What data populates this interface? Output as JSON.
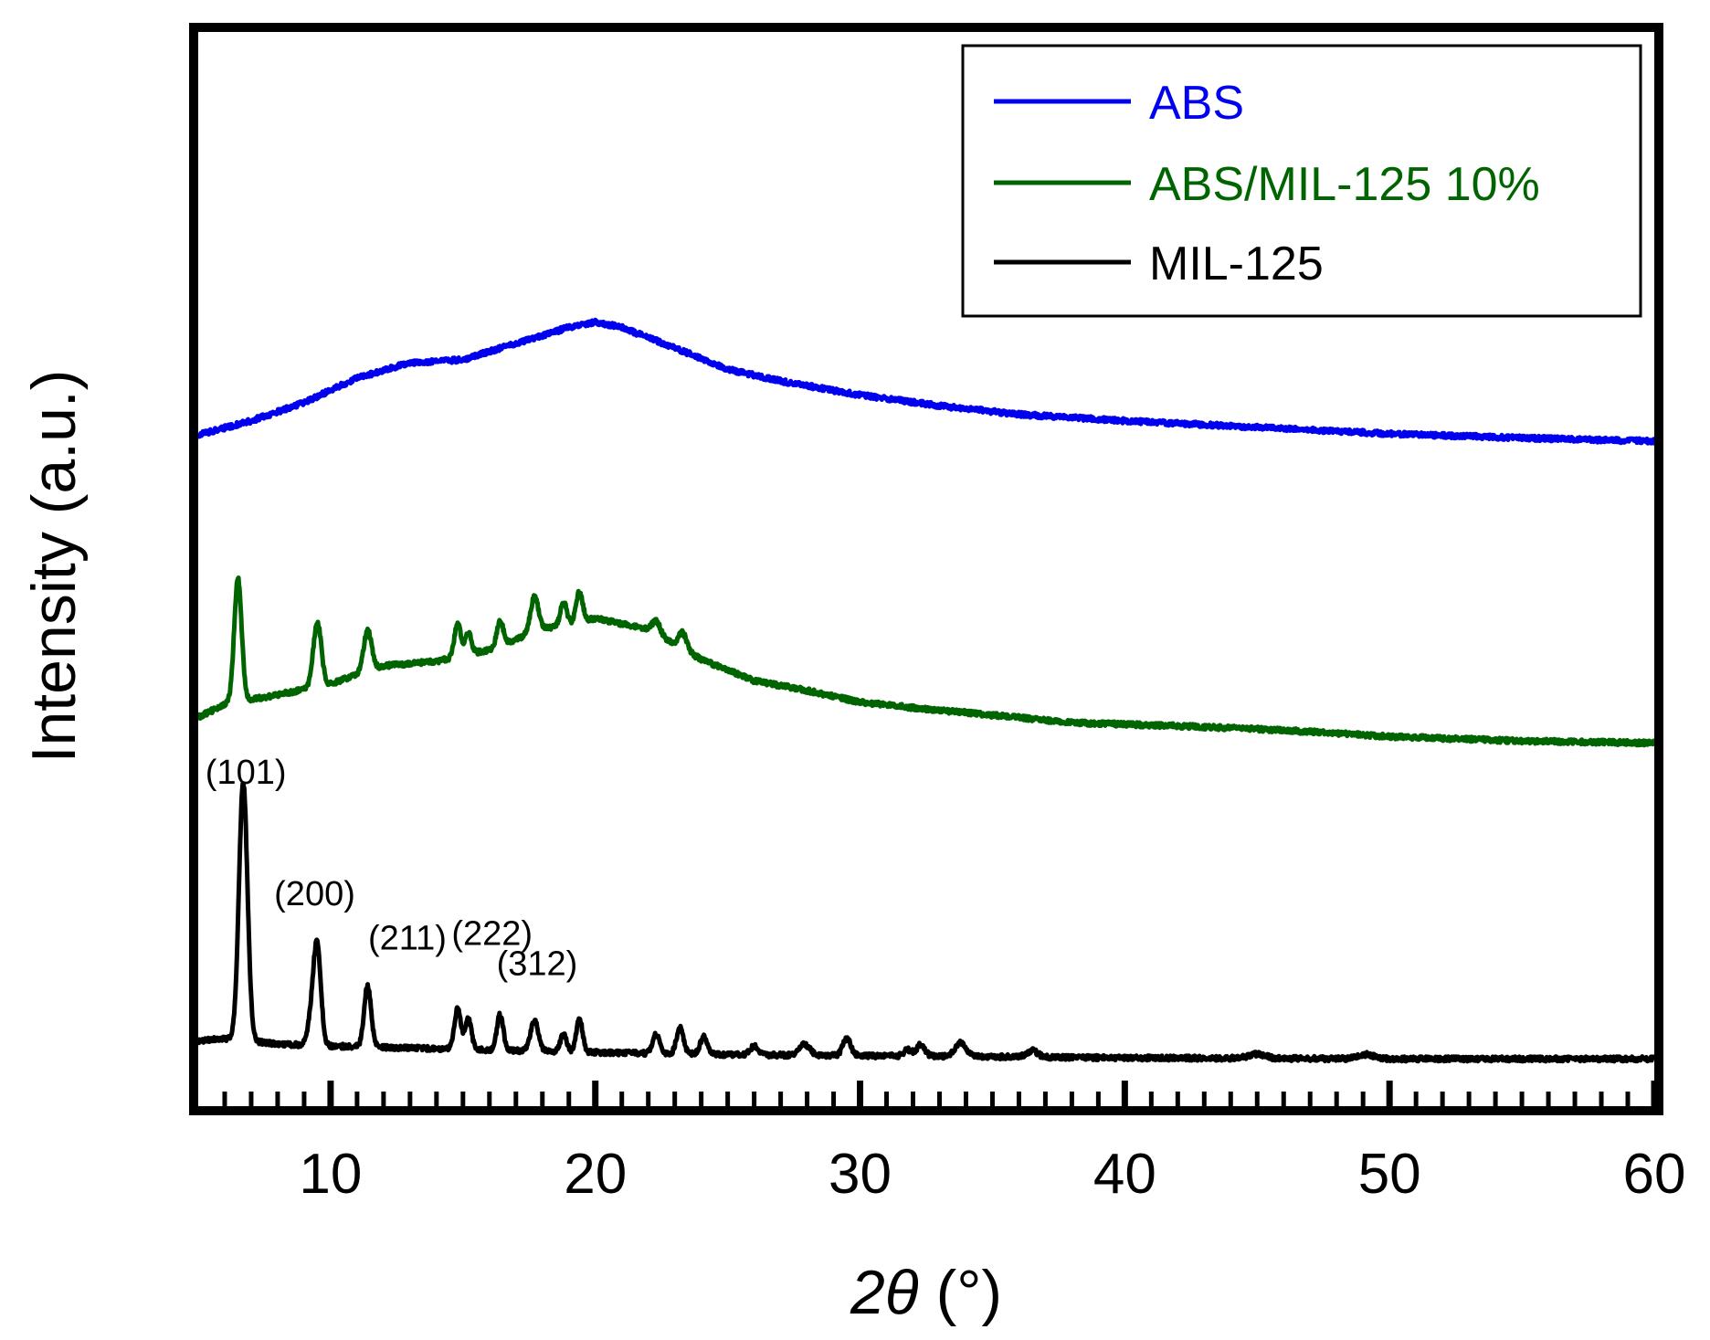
{
  "chart_data": {
    "type": "line",
    "title": "",
    "xlabel_symbol": "2θ",
    "xlabel_unit": "(°)",
    "ylabel": "Intensity (a.u.)",
    "xlim": [
      5,
      60
    ],
    "ylim": [
      0,
      100
    ],
    "xticks": [
      10,
      20,
      30,
      40,
      50,
      60
    ],
    "xticks_minor": [
      6,
      7,
      8,
      9,
      11,
      12,
      13,
      14,
      15,
      16,
      17,
      18,
      19,
      21,
      22,
      23,
      24,
      25,
      26,
      27,
      28,
      29,
      31,
      32,
      33,
      34,
      35,
      36,
      37,
      38,
      39,
      41,
      42,
      43,
      44,
      45,
      46,
      47,
      48,
      49,
      51,
      52,
      53,
      54,
      55,
      56,
      57,
      58,
      59
    ],
    "yticks_visible": false,
    "legend_position": "top-right",
    "series": [
      {
        "name": "ABS",
        "color": "#0000ee",
        "baseline": [
          [
            5,
            62.5
          ],
          [
            7,
            63.8
          ],
          [
            9,
            65.5
          ],
          [
            11,
            67.8
          ],
          [
            13,
            69.2
          ],
          [
            15,
            69.5
          ],
          [
            17,
            71.0
          ],
          [
            19,
            72.5
          ],
          [
            20,
            73.0
          ],
          [
            21,
            72.5
          ],
          [
            23,
            70.6
          ],
          [
            25,
            68.6
          ],
          [
            27,
            67.5
          ],
          [
            30,
            66.2
          ],
          [
            33,
            65.2
          ],
          [
            36,
            64.4
          ],
          [
            40,
            63.8
          ],
          [
            45,
            63.2
          ],
          [
            50,
            62.6
          ],
          [
            55,
            62.2
          ],
          [
            60,
            61.9
          ]
        ],
        "peaks": []
      },
      {
        "name": "ABS/MIL-125 10%",
        "color": "#006400",
        "baseline": [
          [
            5,
            36.2
          ],
          [
            6,
            37.4
          ],
          [
            8,
            38.3
          ],
          [
            10,
            39.3
          ],
          [
            12,
            41.0
          ],
          [
            14,
            41.4
          ],
          [
            16,
            42.5
          ],
          [
            18,
            44.4
          ],
          [
            20,
            45.4
          ],
          [
            22,
            44.4
          ],
          [
            24,
            41.6
          ],
          [
            26,
            39.6
          ],
          [
            28,
            38.7
          ],
          [
            30,
            37.6
          ],
          [
            32,
            37.1
          ],
          [
            35,
            36.4
          ],
          [
            38,
            35.7
          ],
          [
            42,
            35.4
          ],
          [
            46,
            35.0
          ],
          [
            50,
            34.4
          ],
          [
            55,
            34.0
          ],
          [
            60,
            33.8
          ]
        ],
        "peaks": [
          [
            6.5,
            11.5,
            0.14
          ],
          [
            9.5,
            6.0,
            0.15
          ],
          [
            11.4,
            3.8,
            0.15
          ],
          [
            14.8,
            3.2,
            0.12
          ],
          [
            15.2,
            2.0,
            0.12
          ],
          [
            16.4,
            2.3,
            0.12
          ],
          [
            17.7,
            3.3,
            0.15
          ],
          [
            18.8,
            2.1,
            0.12
          ],
          [
            19.4,
            2.8,
            0.12
          ],
          [
            22.3,
            1.2,
            0.15
          ],
          [
            23.3,
            1.5,
            0.15
          ]
        ]
      },
      {
        "name": "MIL-125",
        "color": "#000000",
        "baseline": [
          [
            5,
            6.1
          ],
          [
            6,
            6.3
          ],
          [
            8,
            5.8
          ],
          [
            10,
            5.6
          ],
          [
            15,
            5.3
          ],
          [
            20,
            5.0
          ],
          [
            25,
            4.8
          ],
          [
            30,
            4.7
          ],
          [
            40,
            4.5
          ],
          [
            50,
            4.4
          ],
          [
            60,
            4.4
          ]
        ],
        "peaks": [
          [
            6.7,
            24.0,
            0.16
          ],
          [
            9.5,
            8.6,
            0.14
          ],
          [
            9.3,
            2.5,
            0.15
          ],
          [
            11.4,
            5.7,
            0.13
          ],
          [
            14.8,
            3.8,
            0.12
          ],
          [
            15.2,
            2.8,
            0.12
          ],
          [
            16.4,
            3.3,
            0.12
          ],
          [
            17.7,
            2.8,
            0.15
          ],
          [
            18.8,
            1.6,
            0.12
          ],
          [
            19.4,
            3.0,
            0.12
          ],
          [
            22.3,
            1.8,
            0.13
          ],
          [
            23.2,
            2.5,
            0.13
          ],
          [
            24.1,
            1.6,
            0.14
          ],
          [
            26.0,
            0.8,
            0.15
          ],
          [
            27.9,
            1.0,
            0.2
          ],
          [
            29.5,
            1.6,
            0.15
          ],
          [
            31.8,
            0.6,
            0.15
          ],
          [
            32.3,
            1.1,
            0.15
          ],
          [
            33.8,
            1.3,
            0.2
          ],
          [
            36.5,
            0.6,
            0.2
          ],
          [
            45.0,
            0.4,
            0.3
          ],
          [
            49.1,
            0.4,
            0.3
          ]
        ]
      }
    ],
    "annotations": [
      {
        "text": "(101)",
        "x": 6.8,
        "y": 30.0
      },
      {
        "text": "(200)",
        "x": 9.4,
        "y": 18.7
      },
      {
        "text": "(211)",
        "x": 12.9,
        "y": 14.6
      },
      {
        "text": "(222)",
        "x": 16.1,
        "y": 15.0
      },
      {
        "text": "(312)",
        "x": 17.8,
        "y": 12.2
      }
    ]
  }
}
